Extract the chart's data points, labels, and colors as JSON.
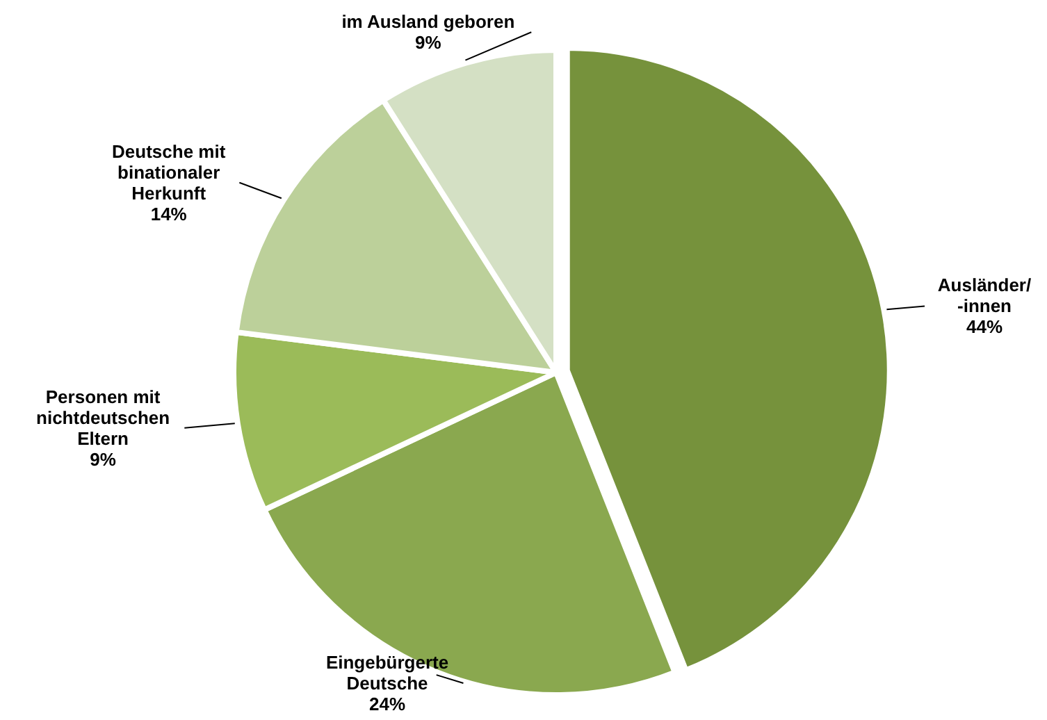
{
  "chart_data": {
    "type": "pie",
    "categories": [
      "Ausländer/\n-innen",
      "Eingebürgerte\nDeutsche",
      "Personen mit\nnichtdeutschen\nEltern",
      "Deutsche mit\nbinationaler\nHerkunft",
      "im Ausland geboren"
    ],
    "values": [
      44,
      24,
      9,
      14,
      9
    ],
    "colors": [
      "#76923c",
      "#8aa84f",
      "#9bbb59",
      "#bcd09a",
      "#d4e0c4"
    ],
    "value_labels": [
      "44%",
      "24%",
      "9%",
      "14%",
      "9%"
    ]
  }
}
